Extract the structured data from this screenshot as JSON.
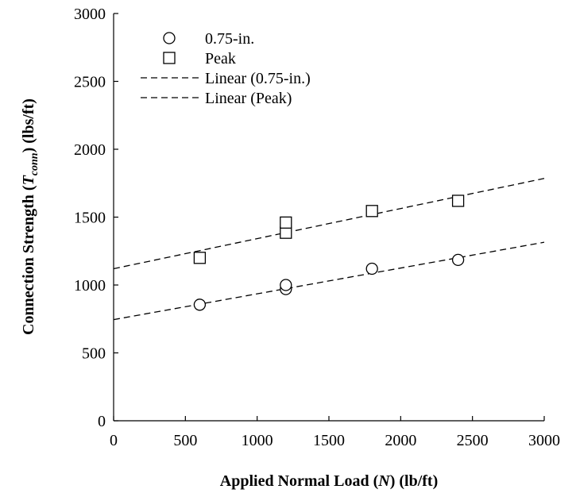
{
  "chart_data": {
    "type": "scatter",
    "xlabel": {
      "prefix": "Applied Normal Load (",
      "var": "N",
      "suffix": ") (lb/ft)"
    },
    "ylabel": {
      "prefix": "Connection Strength (",
      "var": "T",
      "sub": "conn",
      "suffix": ") (lbs/ft)"
    },
    "xlim": [
      0,
      3000
    ],
    "ylim": [
      0,
      3000
    ],
    "xticks": [
      0,
      500,
      1000,
      1500,
      2000,
      2500,
      3000
    ],
    "yticks": [
      0,
      500,
      1000,
      1500,
      2000,
      2500,
      3000
    ],
    "grid": false,
    "legend_position": "top-left",
    "series": [
      {
        "name": "0.75-in.",
        "marker": "circle",
        "points": [
          [
            600,
            855
          ],
          [
            1200,
            970
          ],
          [
            1200,
            1000
          ],
          [
            1800,
            1120
          ],
          [
            2400,
            1185
          ]
        ]
      },
      {
        "name": "Peak",
        "marker": "square",
        "points": [
          [
            600,
            1200
          ],
          [
            1200,
            1385
          ],
          [
            1200,
            1460
          ],
          [
            1800,
            1545
          ],
          [
            2400,
            1620
          ]
        ]
      }
    ],
    "trendlines": [
      {
        "name": "Linear (0.75-in.)",
        "style": "dashed",
        "from": [
          0,
          745
        ],
        "to": [
          3000,
          1315
        ]
      },
      {
        "name": "Linear (Peak)",
        "style": "dashed",
        "from": [
          0,
          1120
        ],
        "to": [
          3000,
          1785
        ]
      }
    ]
  }
}
